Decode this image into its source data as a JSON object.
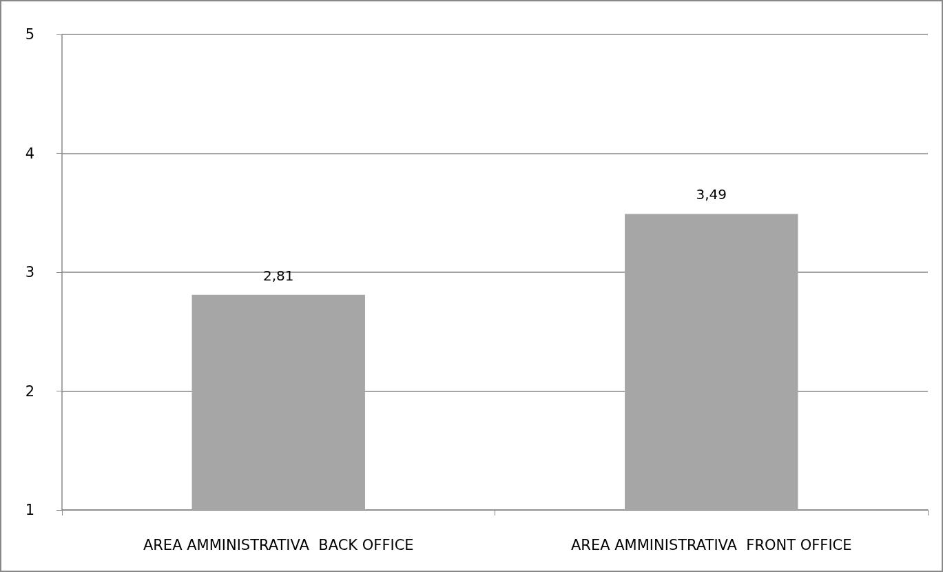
{
  "chart_data": {
    "type": "bar",
    "categories": [
      "AREA AMMINISTRATIVA  BACK OFFICE",
      "AREA AMMINISTRATIVA  FRONT OFFICE"
    ],
    "values": [
      2.81,
      3.49
    ],
    "value_labels": [
      "2,81",
      "3,49"
    ],
    "color": "#a6a6a6",
    "ylim": [
      1,
      5
    ],
    "yticks": [
      1,
      2,
      3,
      4,
      5
    ],
    "grid": "y"
  }
}
